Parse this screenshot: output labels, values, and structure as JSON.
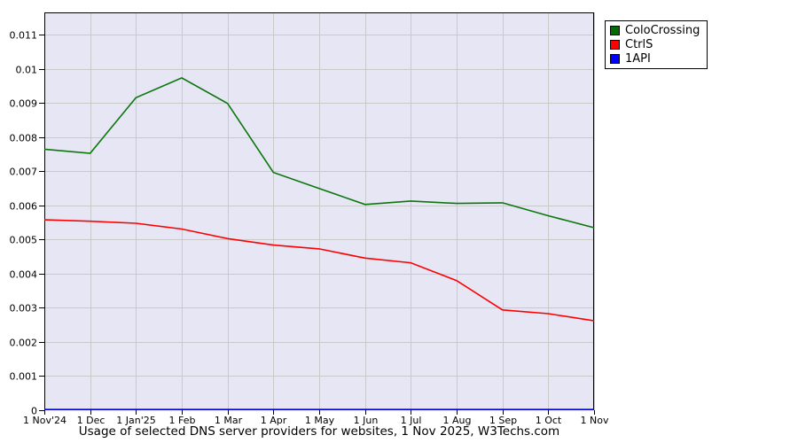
{
  "caption": "Usage of selected DNS server providers for websites, 1 Nov 2025, W3Techs.com",
  "legend": {
    "items": [
      {
        "label": "ColoCrossing",
        "color": "#006b00"
      },
      {
        "label": "CtrlS",
        "color": "#ff0000"
      },
      {
        "label": "1API",
        "color": "#0000ff"
      }
    ]
  },
  "chart_data": {
    "type": "line",
    "title": "Usage of selected DNS server providers for websites, 1 Nov 2025, W3Techs.com",
    "xlabel": "",
    "ylabel": "",
    "x": [
      "1 Nov'24",
      "1 Dec",
      "1 Jan'25",
      "1 Feb",
      "1 Mar",
      "1 Apr",
      "1 May",
      "1 Jun",
      "1 Jul",
      "1 Aug",
      "1 Sep",
      "1 Oct",
      "1 Nov"
    ],
    "series": [
      {
        "name": "ColoCrossing",
        "color": "#0b770b",
        "values": [
          0.00765,
          0.00753,
          0.00916,
          0.00974,
          0.00899,
          0.00697,
          0.0065,
          0.00603,
          0.00613,
          0.00606,
          0.00608,
          0.0057,
          0.00535
        ]
      },
      {
        "name": "CtrlS",
        "color": "#ff0000",
        "values": [
          0.00558,
          0.00554,
          0.00548,
          0.00531,
          0.00503,
          0.00484,
          0.00473,
          0.00446,
          0.00432,
          0.0038,
          0.00294,
          0.00283,
          0.00262
        ]
      },
      {
        "name": "1API",
        "color": "#0000ee",
        "values": [
          2e-05,
          2e-05,
          2e-05,
          2e-05,
          2e-05,
          2e-05,
          2e-05,
          2e-05,
          2e-05,
          2e-05,
          2e-05,
          2e-05,
          2e-05
        ]
      }
    ],
    "ylim": [
      0,
      0.01166
    ],
    "yticks": [
      0,
      0.001,
      0.002,
      0.003,
      0.004,
      0.005,
      0.006,
      0.007,
      0.008,
      0.009,
      0.01,
      0.011
    ],
    "grid": true,
    "legend_position": "outside-top-right",
    "plot_bg": "#e6e6f5",
    "grid_color": "#c9c9c9",
    "axis_color": "#000000"
  }
}
